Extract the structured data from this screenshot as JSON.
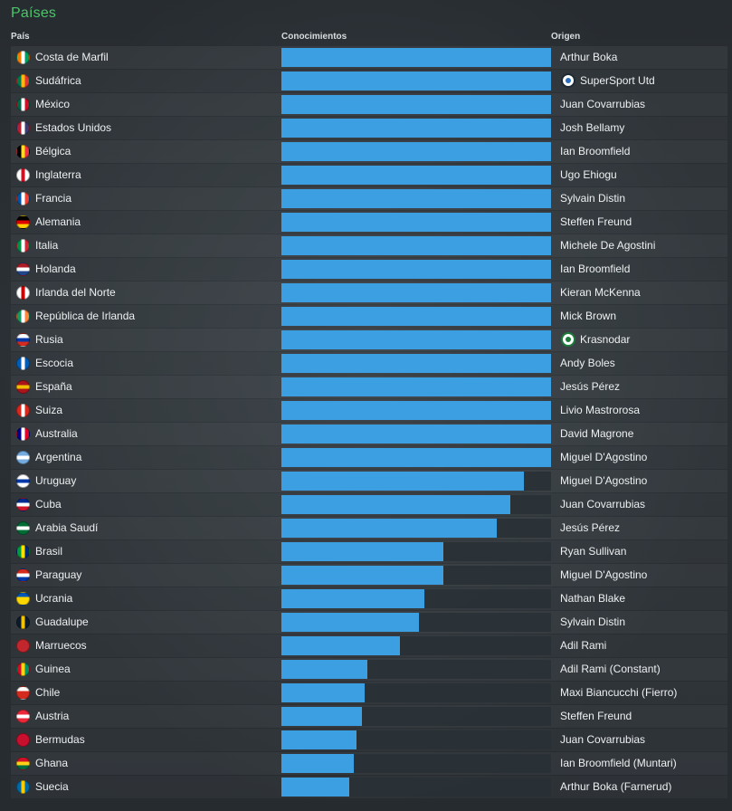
{
  "panel": {
    "title": "Países",
    "columns": {
      "country": "País",
      "knowledge": "Conocimientos",
      "origin": "Origen"
    }
  },
  "rows": [
    {
      "country": "Costa de Marfil",
      "knowledge": 1.0,
      "origin": "Arthur Boka",
      "flag": "flag-ivory-coast-icon",
      "flag_colors": [
        "#f77f00",
        "#ffffff",
        "#009e60"
      ]
    },
    {
      "country": "Sudáfrica",
      "knowledge": 1.0,
      "origin": "SuperSport Utd",
      "origin_badge": "club-badge-icon",
      "flag": "flag-south-africa-icon",
      "flag_colors": [
        "#007a4d",
        "#ffb612",
        "#de3831"
      ]
    },
    {
      "country": "México",
      "knowledge": 1.0,
      "origin": "Juan Covarrubias",
      "flag": "flag-mexico-icon",
      "flag_colors": [
        "#006847",
        "#ffffff",
        "#ce1126"
      ]
    },
    {
      "country": "Estados Unidos",
      "knowledge": 1.0,
      "origin": "Josh Bellamy",
      "flag": "flag-usa-icon",
      "flag_colors": [
        "#b22234",
        "#ffffff",
        "#3c3b6e"
      ]
    },
    {
      "country": "Bélgica",
      "knowledge": 1.0,
      "origin": "Ian Broomfield",
      "flag": "flag-belgium-icon",
      "flag_colors": [
        "#000000",
        "#fdda24",
        "#ef3340"
      ]
    },
    {
      "country": "Inglaterra",
      "knowledge": 1.0,
      "origin": "Ugo Ehiogu",
      "flag": "flag-england-icon",
      "flag_colors": [
        "#ffffff",
        "#ce1124",
        "#ffffff"
      ]
    },
    {
      "country": "Francia",
      "knowledge": 1.0,
      "origin": "Sylvain Distin",
      "flag": "flag-france-icon",
      "flag_colors": [
        "#0055a4",
        "#ffffff",
        "#ef4135"
      ]
    },
    {
      "country": "Alemania",
      "knowledge": 1.0,
      "origin": "Steffen Freund",
      "flag": "flag-germany-icon",
      "flag_colors": [
        "#000000",
        "#dd0000",
        "#ffce00"
      ],
      "horizontal": true
    },
    {
      "country": "Italia",
      "knowledge": 1.0,
      "origin": "Michele De Agostini",
      "flag": "flag-italy-icon",
      "flag_colors": [
        "#009246",
        "#ffffff",
        "#ce2b37"
      ]
    },
    {
      "country": "Holanda",
      "knowledge": 1.0,
      "origin": "Ian Broomfield",
      "flag": "flag-netherlands-icon",
      "flag_colors": [
        "#ae1c28",
        "#ffffff",
        "#21468b"
      ],
      "horizontal": true
    },
    {
      "country": "Irlanda del Norte",
      "knowledge": 1.0,
      "origin": "Kieran McKenna",
      "flag": "flag-northern-ireland-icon",
      "flag_colors": [
        "#ffffff",
        "#cc0000",
        "#ffffff"
      ]
    },
    {
      "country": "República de Irlanda",
      "knowledge": 1.0,
      "origin": "Mick Brown",
      "flag": "flag-ireland-icon",
      "flag_colors": [
        "#169b62",
        "#ffffff",
        "#ff883e"
      ]
    },
    {
      "country": "Rusia",
      "knowledge": 1.0,
      "origin": "Krasnodar",
      "origin_badge": "club-badge-icon",
      "badge_style": "green",
      "flag": "flag-russia-icon",
      "flag_colors": [
        "#ffffff",
        "#0039a6",
        "#d52b1e"
      ],
      "horizontal": true
    },
    {
      "country": "Escocia",
      "knowledge": 1.0,
      "origin": "Andy Boles",
      "flag": "flag-scotland-icon",
      "flag_colors": [
        "#005eb8",
        "#ffffff",
        "#005eb8"
      ]
    },
    {
      "country": "España",
      "knowledge": 1.0,
      "origin": "Jesús Pérez",
      "flag": "flag-spain-icon",
      "flag_colors": [
        "#aa151b",
        "#f1bf00",
        "#aa151b"
      ],
      "horizontal": true
    },
    {
      "country": "Suiza",
      "knowledge": 1.0,
      "origin": "Livio Mastrorosa",
      "flag": "flag-switzerland-icon",
      "flag_colors": [
        "#da291c",
        "#ffffff",
        "#da291c"
      ]
    },
    {
      "country": "Australia",
      "knowledge": 1.0,
      "origin": "David Magrone",
      "flag": "flag-australia-icon",
      "flag_colors": [
        "#00008b",
        "#ffffff",
        "#e4002b"
      ]
    },
    {
      "country": "Argentina",
      "knowledge": 1.0,
      "origin": "Miguel D'Agostino",
      "flag": "flag-argentina-icon",
      "flag_colors": [
        "#74acdf",
        "#ffffff",
        "#74acdf"
      ],
      "horizontal": true
    },
    {
      "country": "Uruguay",
      "knowledge": 0.9,
      "origin": "Miguel D'Agostino",
      "flag": "flag-uruguay-icon",
      "flag_colors": [
        "#ffffff",
        "#0038a8",
        "#ffffff"
      ],
      "horizontal": true
    },
    {
      "country": "Cuba",
      "knowledge": 0.85,
      "origin": "Juan Covarrubias",
      "flag": "flag-cuba-icon",
      "flag_colors": [
        "#002a8f",
        "#ffffff",
        "#cf142b"
      ],
      "horizontal": true
    },
    {
      "country": "Arabia Saudí",
      "knowledge": 0.8,
      "origin": "Jesús Pérez",
      "flag": "flag-saudi-arabia-icon",
      "flag_colors": [
        "#006c35",
        "#ffffff",
        "#006c35"
      ],
      "horizontal": true
    },
    {
      "country": "Brasil",
      "knowledge": 0.6,
      "origin": "Ryan Sullivan",
      "flag": "flag-brazil-icon",
      "flag_colors": [
        "#009c3b",
        "#ffdf00",
        "#002776"
      ]
    },
    {
      "country": "Paraguay",
      "knowledge": 0.6,
      "origin": "Miguel D'Agostino",
      "flag": "flag-paraguay-icon",
      "flag_colors": [
        "#d52b1e",
        "#ffffff",
        "#0038a8"
      ],
      "horizontal": true
    },
    {
      "country": "Ucrania",
      "knowledge": 0.53,
      "origin": "Nathan Blake",
      "flag": "flag-ukraine-icon",
      "flag_colors": [
        "#0057b7",
        "#ffd700",
        "#ffd700"
      ],
      "horizontal": true
    },
    {
      "country": "Guadalupe",
      "knowledge": 0.51,
      "origin": "Sylvain Distin",
      "flag": "flag-guadeloupe-icon",
      "flag_colors": [
        "#0c1c2c",
        "#f3c200",
        "#0c1c2c"
      ]
    },
    {
      "country": "Marruecos",
      "knowledge": 0.44,
      "origin": "Adil Rami",
      "flag": "flag-morocco-icon",
      "flag_colors": [
        "#c1272d",
        "#c1272d",
        "#c1272d"
      ]
    },
    {
      "country": "Guinea",
      "knowledge": 0.32,
      "origin": "Adil Rami (Constant)",
      "flag": "flag-guinea-icon",
      "flag_colors": [
        "#ce1126",
        "#fcd116",
        "#009460"
      ]
    },
    {
      "country": "Chile",
      "knowledge": 0.31,
      "origin": "Maxi Biancucchi (Fierro)",
      "flag": "flag-chile-icon",
      "flag_colors": [
        "#ffffff",
        "#d52b1e",
        "#d52b1e"
      ],
      "horizontal": true
    },
    {
      "country": "Austria",
      "knowledge": 0.3,
      "origin": "Steffen Freund",
      "flag": "flag-austria-icon",
      "flag_colors": [
        "#ed2939",
        "#ffffff",
        "#ed2939"
      ],
      "horizontal": true
    },
    {
      "country": "Bermudas",
      "knowledge": 0.28,
      "origin": "Juan Covarrubias",
      "flag": "flag-bermuda-icon",
      "flag_colors": [
        "#c8102e",
        "#c8102e",
        "#c8102e"
      ]
    },
    {
      "country": "Ghana",
      "knowledge": 0.27,
      "origin": "Ian Broomfield (Muntari)",
      "flag": "flag-ghana-icon",
      "flag_colors": [
        "#ce1126",
        "#fcd116",
        "#006b3f"
      ],
      "horizontal": true
    },
    {
      "country": "Suecia",
      "knowledge": 0.25,
      "origin": "Arthur Boka (Farnerud)",
      "flag": "flag-sweden-icon",
      "flag_colors": [
        "#006aa7",
        "#fecc00",
        "#006aa7"
      ]
    }
  ],
  "colors": {
    "accent": "#4cc46a",
    "bar": "#3b9fe2",
    "track": "#283036"
  }
}
